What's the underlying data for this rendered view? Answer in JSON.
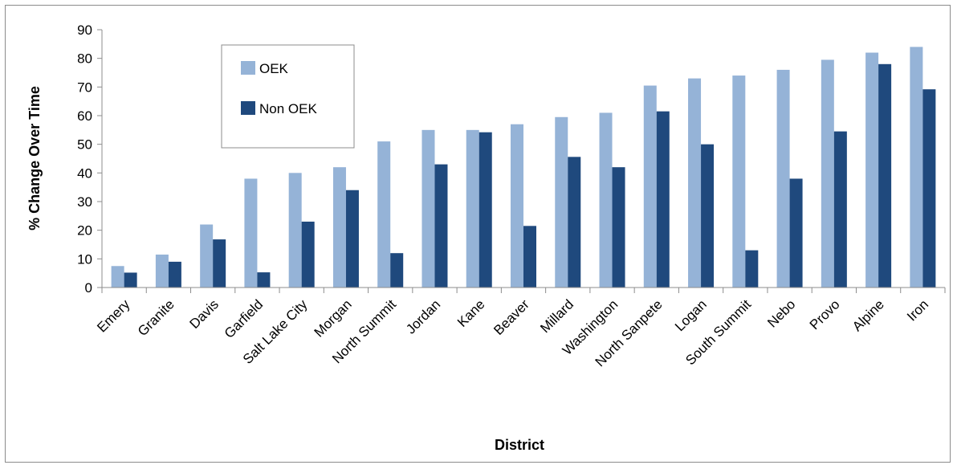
{
  "chart_data": {
    "type": "bar",
    "title": "",
    "xlabel": "District",
    "ylabel": "% Change Over Time",
    "ylim": [
      0,
      90
    ],
    "yticks": [
      0,
      10,
      20,
      30,
      40,
      50,
      60,
      70,
      80,
      90
    ],
    "grid": false,
    "legend_placement": "top-left",
    "categories": [
      "Emery",
      "Granite",
      "Davis",
      "Garfield",
      "Salt Lake City",
      "Morgan",
      "North Summit",
      "Jordan",
      "Kane",
      "Beaver",
      "Millard",
      "Washington",
      "North Sanpete",
      "Logan",
      "South Summit",
      "Nebo",
      "Provo",
      "Alpine",
      "Iron"
    ],
    "series": [
      {
        "name": "OEK",
        "color": "#95b3d7",
        "values": [
          7.5,
          11.5,
          22,
          38,
          40,
          42,
          51,
          55,
          55,
          57,
          59.5,
          61,
          70.5,
          73,
          74,
          76,
          79.5,
          82,
          84
        ]
      },
      {
        "name": "Non OEK",
        "color": "#1f497d",
        "values": [
          5.2,
          9,
          16.8,
          5.3,
          23,
          34,
          12,
          43,
          54.2,
          21.5,
          45.6,
          42,
          61.5,
          50,
          13,
          38,
          54.5,
          78,
          69.2
        ]
      }
    ]
  }
}
